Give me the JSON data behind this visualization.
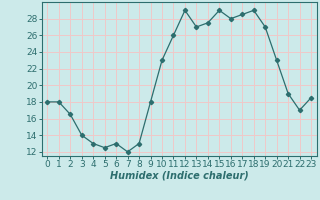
{
  "x": [
    0,
    1,
    2,
    3,
    4,
    5,
    6,
    7,
    8,
    9,
    10,
    11,
    12,
    13,
    14,
    15,
    16,
    17,
    18,
    19,
    20,
    21,
    22,
    23
  ],
  "y": [
    18,
    18,
    16.5,
    14,
    13,
    12.5,
    13,
    12,
    13,
    18,
    23,
    26,
    29,
    27,
    27.5,
    29,
    28,
    28.5,
    29,
    27,
    23,
    19,
    17,
    18.5
  ],
  "line_color": "#2d6e6e",
  "marker": "D",
  "marker_size": 2.2,
  "bg_color": "#cceaea",
  "grid_color": "#f0c8c8",
  "xlabel": "Humidex (Indice chaleur)",
  "ylim": [
    11.5,
    30
  ],
  "yticks": [
    12,
    14,
    16,
    18,
    20,
    22,
    24,
    26,
    28
  ],
  "xticks": [
    0,
    1,
    2,
    3,
    4,
    5,
    6,
    7,
    8,
    9,
    10,
    11,
    12,
    13,
    14,
    15,
    16,
    17,
    18,
    19,
    20,
    21,
    22,
    23
  ],
  "xlabel_fontsize": 7,
  "tick_fontsize": 6.5,
  "linewidth": 0.9
}
